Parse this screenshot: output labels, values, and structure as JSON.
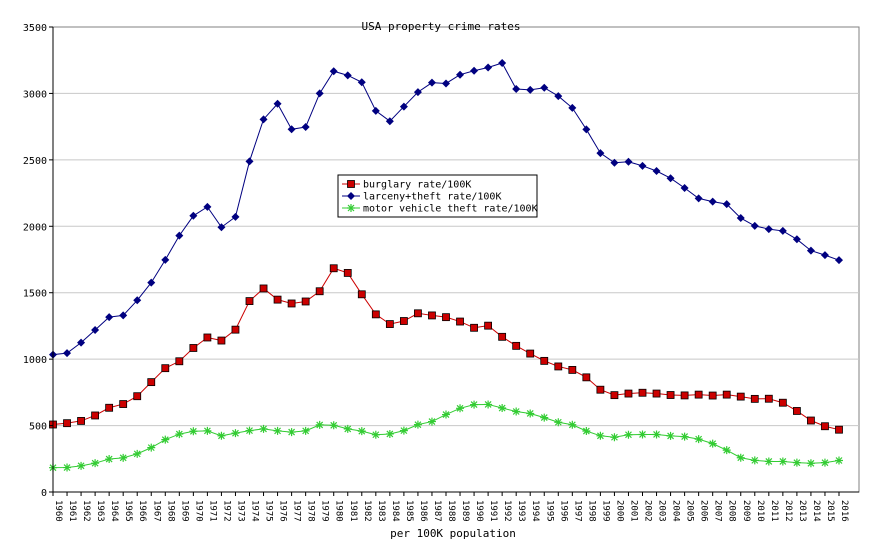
{
  "chart_data": {
    "type": "line",
    "title": "USA property crime rates",
    "xlabel": "per 100K population",
    "ylabel": "",
    "ylim": [
      0,
      3500
    ],
    "yticks": [
      0,
      500,
      1000,
      1500,
      2000,
      2500,
      3000,
      3500
    ],
    "grid": "horizontal",
    "legend_position": "center",
    "x": [
      1960,
      1961,
      1962,
      1963,
      1964,
      1965,
      1966,
      1967,
      1968,
      1969,
      1970,
      1971,
      1972,
      1973,
      1974,
      1975,
      1976,
      1977,
      1978,
      1979,
      1980,
      1981,
      1982,
      1983,
      1984,
      1985,
      1986,
      1987,
      1988,
      1989,
      1990,
      1991,
      1992,
      1993,
      1994,
      1995,
      1996,
      1997,
      1998,
      1999,
      2000,
      2001,
      2002,
      2003,
      2004,
      2005,
      2006,
      2007,
      2008,
      2009,
      2010,
      2011,
      2012,
      2013,
      2014,
      2015,
      2016
    ],
    "series": [
      {
        "name": "burglary rate/100K",
        "color": "#cc0000",
        "marker": "square",
        "values": [
          508,
          518,
          535,
          576,
          634,
          662,
          721,
          827,
          932,
          984,
          1084,
          1163,
          1140,
          1222,
          1437,
          1532,
          1448,
          1419,
          1434,
          1511,
          1684,
          1649,
          1488,
          1337,
          1264,
          1287,
          1345,
          1329,
          1316,
          1283,
          1236,
          1252,
          1168,
          1100,
          1042,
          987,
          945,
          919,
          863,
          770,
          729,
          741,
          747,
          741,
          730,
          727,
          733,
          726,
          733,
          718,
          701,
          702,
          672,
          610,
          538,
          495,
          469
        ]
      },
      {
        "name": "larceny+theft rate/100K",
        "color": "#000080",
        "marker": "diamond",
        "values": [
          1034,
          1045,
          1124,
          1219,
          1316,
          1329,
          1443,
          1576,
          1747,
          1930,
          2079,
          2146,
          1993,
          2071,
          2489,
          2805,
          2922,
          2730,
          2747,
          3000,
          3167,
          3136,
          3084,
          2869,
          2791,
          2901,
          3010,
          3081,
          3075,
          3141,
          3171,
          3195,
          3229,
          3033,
          3027,
          3043,
          2980,
          2891,
          2729,
          2551,
          2478,
          2486,
          2455,
          2416,
          2362,
          2288,
          2210,
          2186,
          2167,
          2062,
          2003,
          1979,
          1965,
          1902,
          1817,
          1783,
          1745
        ]
      },
      {
        "name": "motor vehicle theft rate/100K",
        "color": "#33cc33",
        "marker": "star",
        "values": [
          183,
          184,
          197,
          217,
          248,
          257,
          287,
          334,
          394,
          436,
          457,
          460,
          423,
          443,
          462,
          475,
          460,
          451,
          460,
          505,
          502,
          475,
          458,
          431,
          437,
          462,
          507,
          530,
          583,
          630,
          658,
          659,
          632,
          606,
          591,
          560,
          525,
          506,
          459,
          423,
          412,
          431,
          433,
          433,
          422,
          417,
          398,
          364,
          315,
          258,
          238,
          230,
          230,
          221,
          216,
          221,
          237
        ]
      }
    ]
  }
}
